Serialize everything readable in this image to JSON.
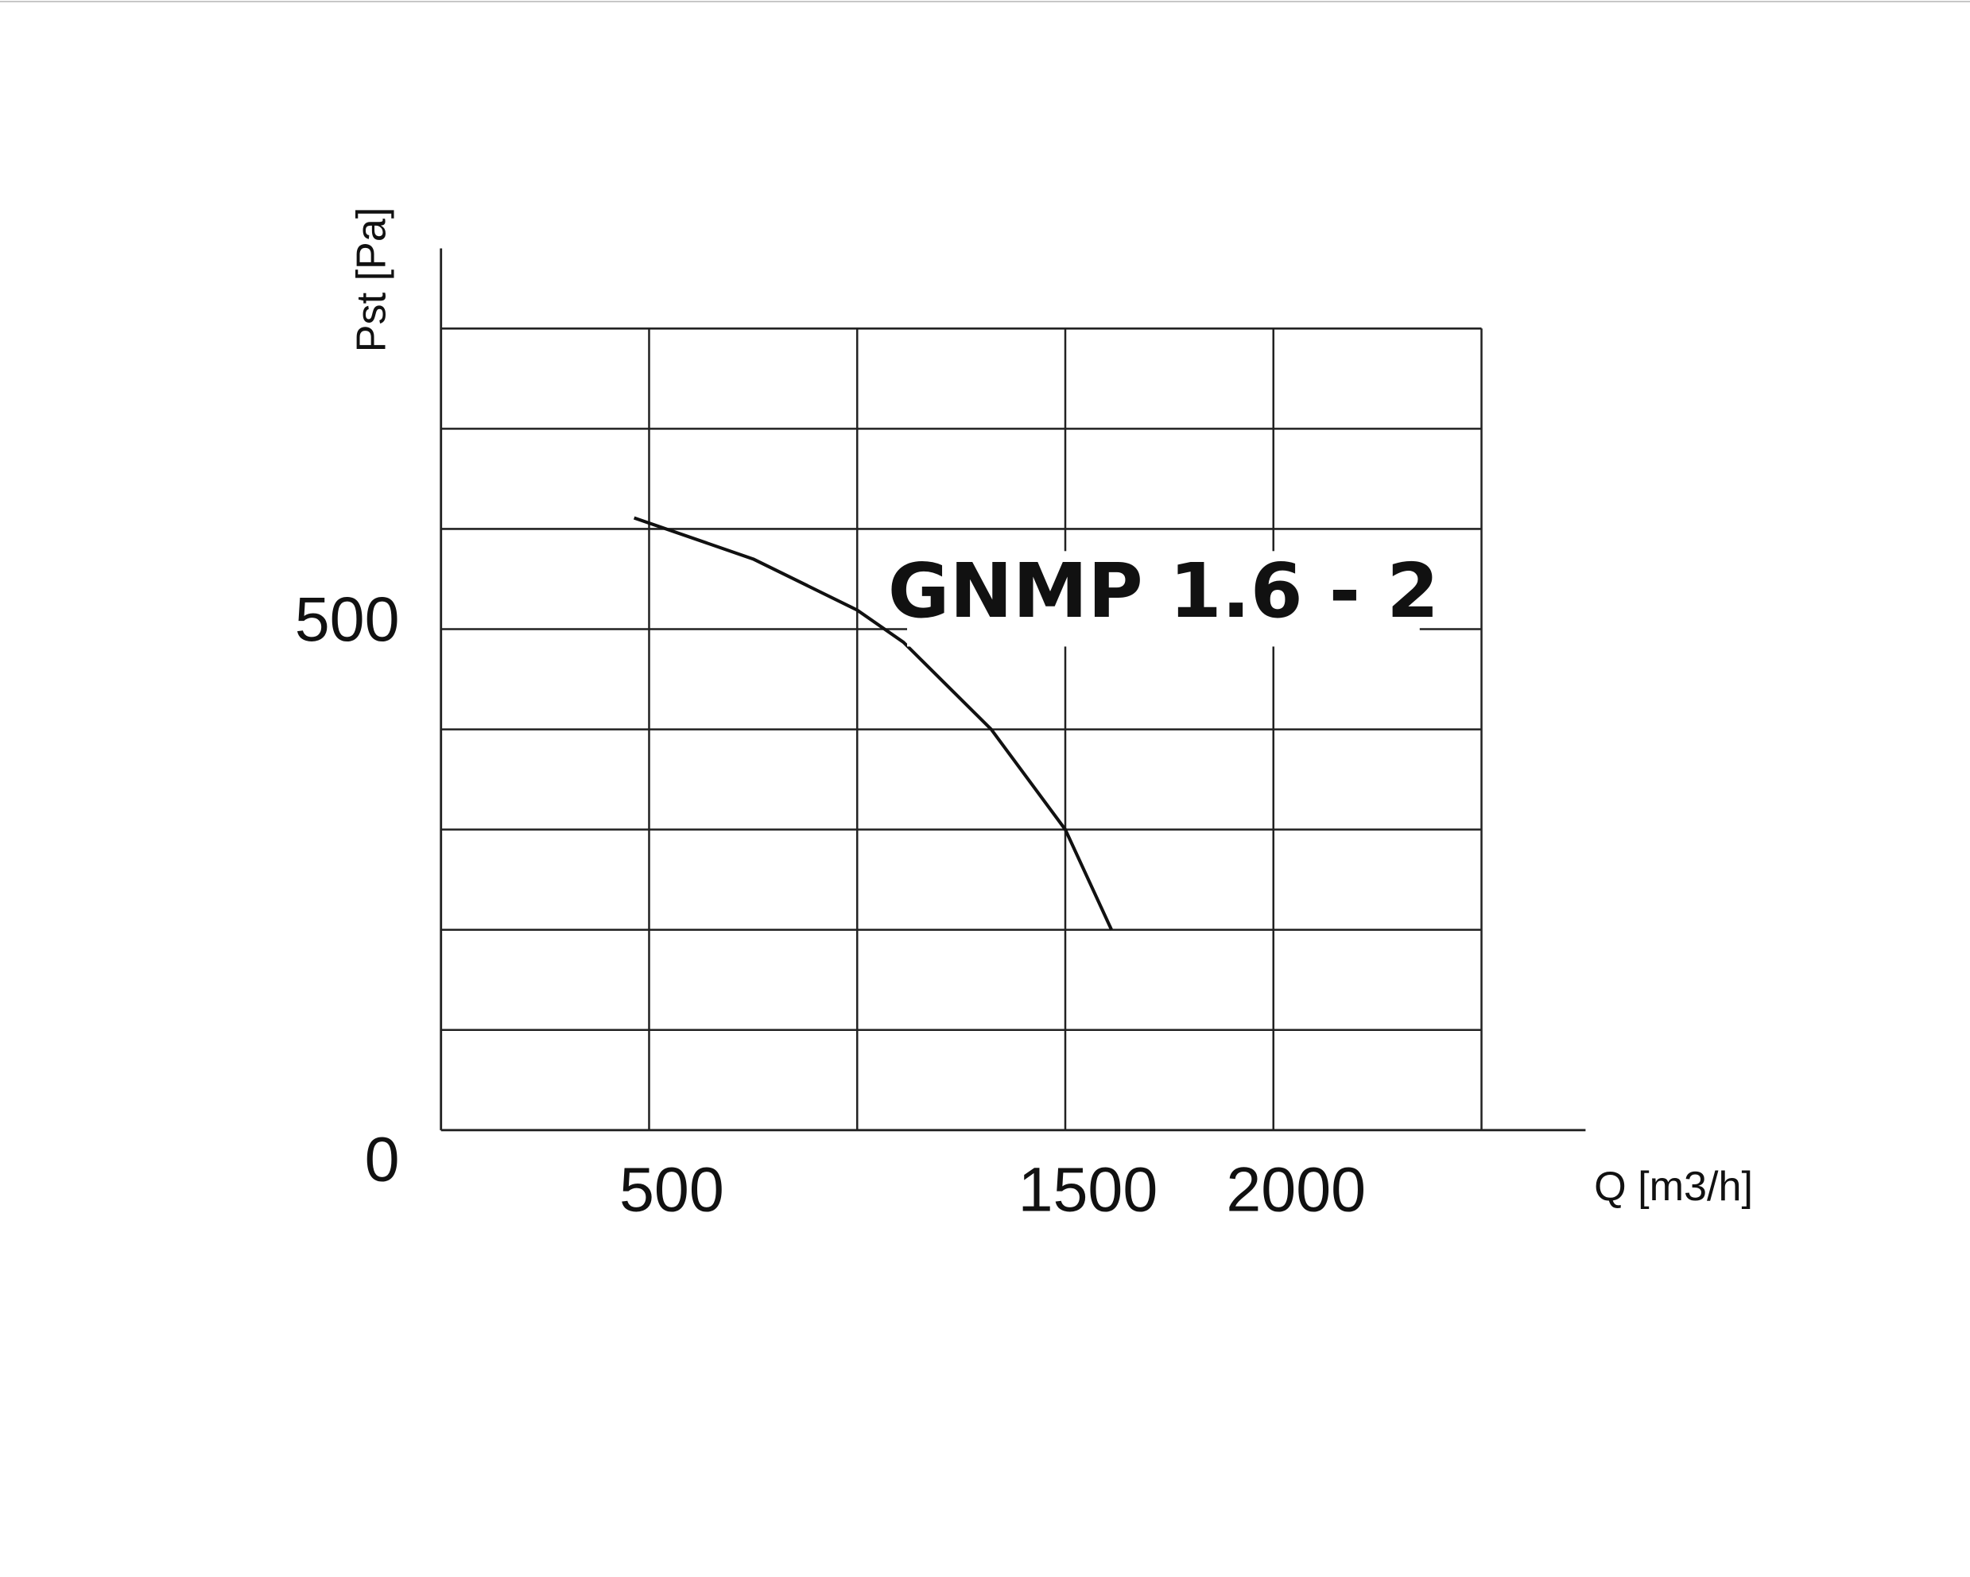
{
  "chart_data": {
    "type": "line",
    "x_label": "Q [m3/h]",
    "y_label": "Pst [Pa]",
    "annotation": "GNMP 1.6 - 2",
    "x": [
      464,
      750,
      1000,
      1111,
      1322,
      1500,
      1611
    ],
    "series": [
      {
        "color": "#111111",
        "values": [
          611,
          570,
          519,
          487,
          400,
          300,
          200
        ]
      }
    ],
    "xlim": [
      0,
      2750
    ],
    "ylim": [
      0,
      880
    ],
    "xticks": [
      500,
      1500,
      2000
    ],
    "yticks": [
      0,
      500
    ],
    "xgrid": [
      500,
      1000,
      1500,
      2000,
      2500
    ],
    "ygrid": [
      100,
      200,
      300,
      400,
      500,
      600,
      700,
      800
    ],
    "grid": true
  }
}
